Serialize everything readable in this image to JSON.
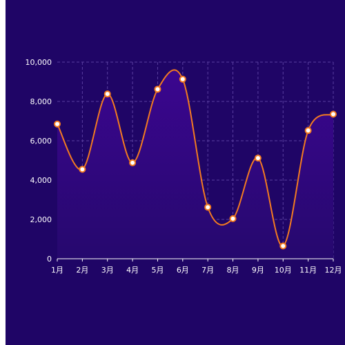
{
  "chart_data": {
    "type": "area",
    "categories": [
      "1月",
      "2月",
      "3月",
      "4月",
      "5月",
      "6月",
      "7月",
      "8月",
      "9月",
      "10月",
      "11月",
      "12月"
    ],
    "series": [
      {
        "values": [
          6850,
          4550,
          8380,
          4880,
          8620,
          9130,
          2620,
          2040,
          5120,
          650,
          6520,
          7350
        ]
      }
    ],
    "y_ticks": [
      "0",
      "2,000",
      "4,000",
      "6,000",
      "8,000",
      "10,000"
    ],
    "ylim": [
      0,
      10000
    ],
    "grid": true,
    "smooth": true,
    "colors": {
      "background": "#1f0566",
      "line": "#f47b20",
      "marker_fill": "#ffffff",
      "area_top": "#3b068f",
      "area_bottom": "#26086e",
      "grid": "#5a3fa0",
      "axis": "#ffffff"
    }
  }
}
